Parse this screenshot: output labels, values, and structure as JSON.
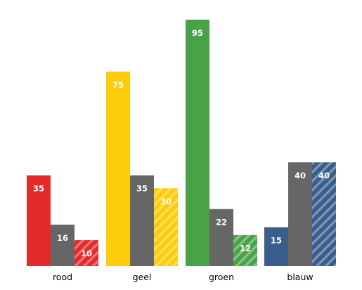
{
  "chart_data": {
    "type": "bar",
    "categories": [
      "rood",
      "geel",
      "groen",
      "blauw"
    ],
    "category_colors": [
      "#e32b2b",
      "#fccc0a",
      "#48a246",
      "#3a5e8c"
    ],
    "gray_color": "#666666",
    "series": [
      {
        "style": "category-color solid",
        "values": [
          35,
          75,
          95,
          15
        ]
      },
      {
        "style": "gray solid",
        "values": [
          16,
          35,
          22,
          40
        ]
      },
      {
        "style": "category-color hatched",
        "values": [
          10,
          30,
          12,
          40
        ]
      }
    ],
    "ylim": [
      0,
      95
    ],
    "xlabel": "",
    "ylabel": "",
    "title": "",
    "grid": false,
    "y_axis_visible": false
  }
}
